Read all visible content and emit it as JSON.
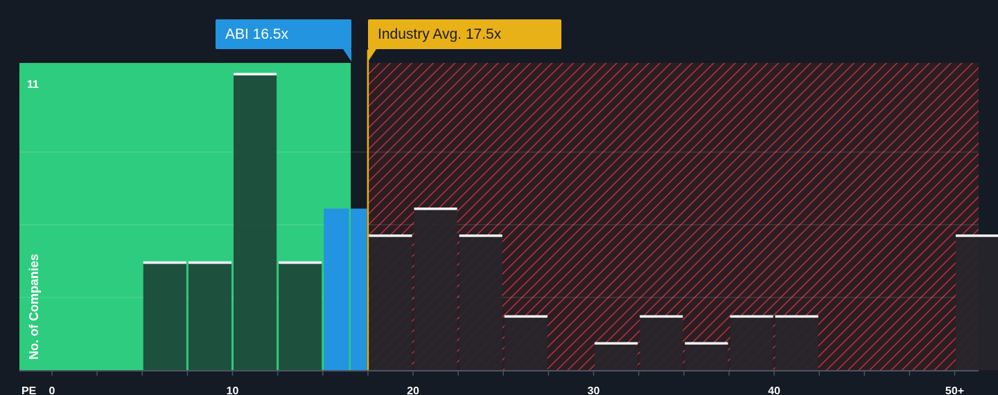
{
  "chart_data": {
    "type": "bar",
    "metric_label": "PE",
    "ylabel": "No. of Companies",
    "y_max_label": "11",
    "ylim": [
      0,
      11
    ],
    "y_gridlines": [
      2.7,
      5.4,
      8.1
    ],
    "x_ticks": [
      {
        "value": 0,
        "label": "0"
      },
      {
        "value": 10,
        "label": "10"
      },
      {
        "value": 20,
        "label": "20"
      },
      {
        "value": 30,
        "label": "30"
      },
      {
        "value": 40,
        "label": "40"
      },
      {
        "value": 50,
        "label": "50+"
      }
    ],
    "bars": [
      {
        "x0": 5,
        "x1": 7.5,
        "count": 4,
        "group": "below"
      },
      {
        "x0": 7.5,
        "x1": 10,
        "count": 4,
        "group": "below"
      },
      {
        "x0": 10,
        "x1": 12.5,
        "count": 11,
        "group": "below"
      },
      {
        "x0": 12.5,
        "x1": 15,
        "count": 4,
        "group": "below"
      },
      {
        "x0": 15,
        "x1": 17.5,
        "count": 6,
        "group": "company"
      },
      {
        "x0": 17.5,
        "x1": 20,
        "count": 5,
        "group": "above"
      },
      {
        "x0": 20,
        "x1": 22.5,
        "count": 6,
        "group": "above"
      },
      {
        "x0": 22.5,
        "x1": 25,
        "count": 5,
        "group": "above"
      },
      {
        "x0": 25,
        "x1": 27.5,
        "count": 2,
        "group": "above"
      },
      {
        "x0": 30,
        "x1": 32.5,
        "count": 1,
        "group": "above"
      },
      {
        "x0": 32.5,
        "x1": 35,
        "count": 2,
        "group": "above"
      },
      {
        "x0": 35,
        "x1": 37.5,
        "count": 1,
        "group": "above"
      },
      {
        "x0": 37.5,
        "x1": 40,
        "count": 2,
        "group": "above"
      },
      {
        "x0": 40,
        "x1": 42.5,
        "count": 2,
        "group": "above"
      },
      {
        "x0": 50,
        "x1": 52.5,
        "count": 5,
        "group": "above"
      }
    ],
    "company": {
      "name": "ABI",
      "pe": 16.5,
      "label": "ABI 16.5x"
    },
    "industry": {
      "pe": 17.5,
      "label": "Industry Avg. 17.5x"
    }
  },
  "colors": {
    "background": "#151b24",
    "below_zone": "#2ecc7e",
    "below_bar": "#1e4a3a",
    "company_bar": "#2394e0",
    "above_zone": "#2a1e24",
    "hatch": "#d2363d",
    "above_bar": "#27252b",
    "cap": "#ffffff",
    "company_line": "#2ecc7e",
    "industry_line": "#e9b118",
    "axis_text": "#ffffff"
  }
}
